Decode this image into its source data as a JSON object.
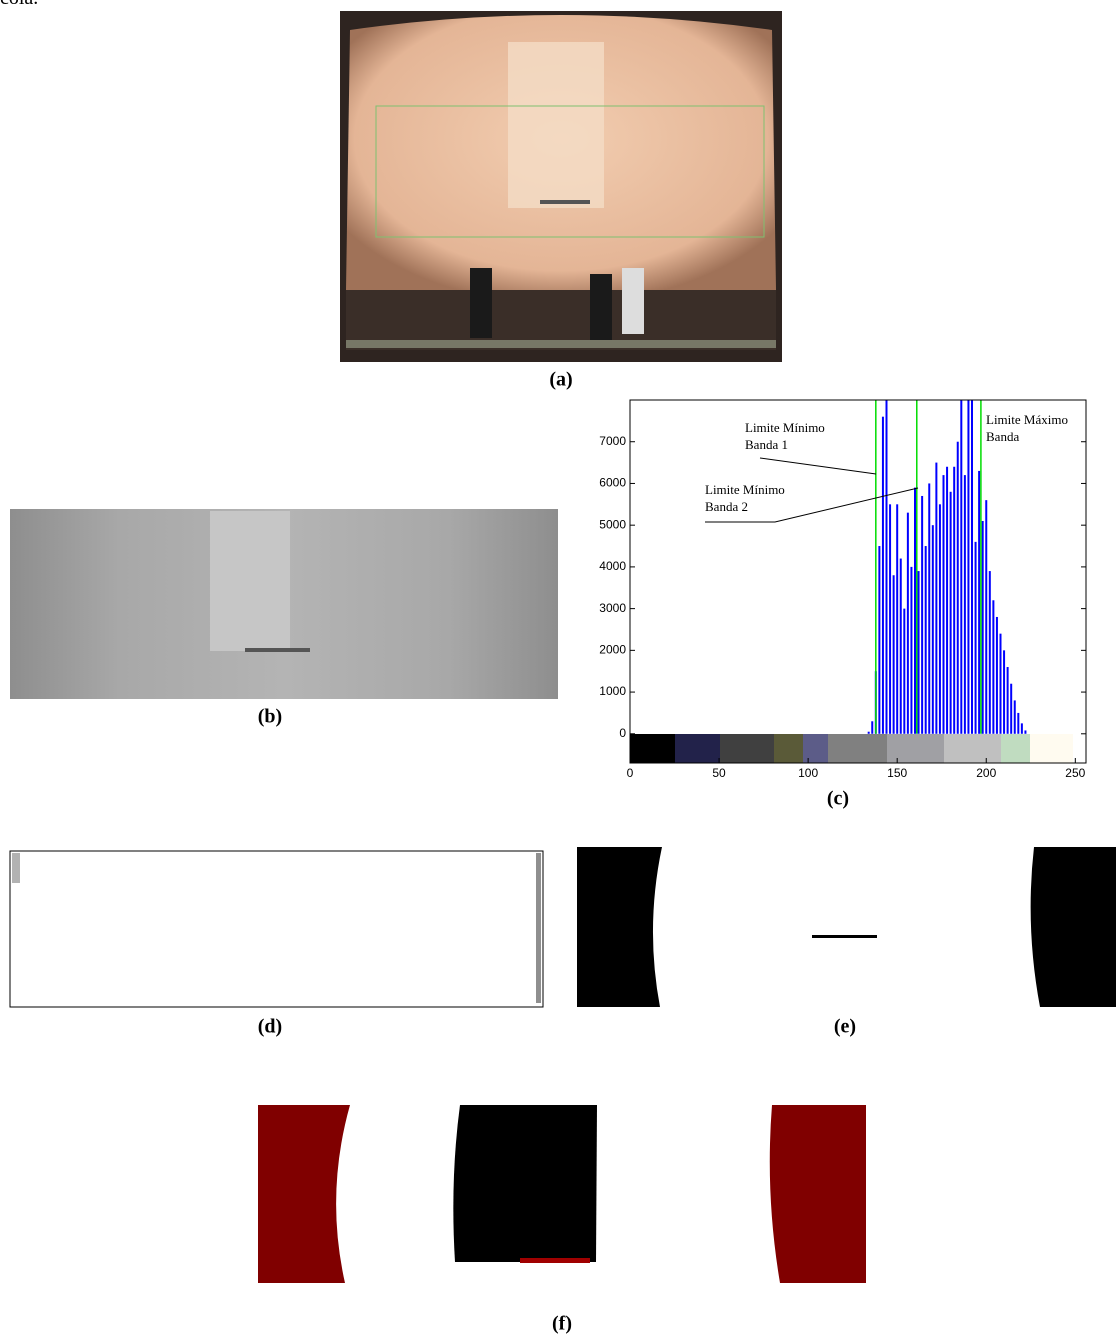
{
  "intro_text": "cola.",
  "figures": {
    "a": {
      "caption": "(a)"
    },
    "b": {
      "caption": "(b)"
    },
    "c": {
      "caption": "(c)"
    },
    "d": {
      "caption": "(d)"
    },
    "e": {
      "caption": "(e)"
    },
    "f": {
      "caption": "(f)"
    }
  },
  "chart_data": {
    "type": "bar",
    "x": [
      134,
      136,
      138,
      140,
      142,
      144,
      146,
      148,
      150,
      152,
      154,
      156,
      158,
      160,
      162,
      164,
      166,
      168,
      170,
      172,
      174,
      176,
      178,
      180,
      182,
      184,
      186,
      188,
      190,
      192,
      194,
      196,
      198,
      200,
      202,
      204,
      206,
      208,
      210,
      212,
      214,
      216,
      218,
      220,
      222
    ],
    "values": [
      50,
      300,
      1500,
      4500,
      7600,
      8000,
      5500,
      3800,
      5500,
      4200,
      3000,
      5300,
      4000,
      5900,
      3900,
      5700,
      4500,
      6000,
      5000,
      6500,
      5500,
      6200,
      6400,
      5800,
      6400,
      7000,
      8000,
      6200,
      8000,
      8000,
      4600,
      6300,
      5100,
      5600,
      3900,
      3200,
      2800,
      2400,
      2000,
      1600,
      1200,
      800,
      500,
      250,
      80
    ],
    "color": "#0000ff",
    "xlim": [
      0,
      256
    ],
    "ylim": [
      -700,
      8000
    ],
    "xticks": [
      0,
      50,
      100,
      150,
      200,
      250
    ],
    "yticks": [
      0,
      1000,
      2000,
      3000,
      4000,
      5000,
      6000,
      7000
    ],
    "thresholds": [
      138,
      161,
      197
    ],
    "threshold_color": "#00dd00",
    "annotations": [
      {
        "lines": [
          "Limite Mínimo",
          "Banda 1"
        ]
      },
      {
        "lines": [
          "Limite Mínimo",
          "Banda 2"
        ]
      },
      {
        "lines": [
          "Limite Máximo",
          "Banda"
        ]
      }
    ]
  }
}
